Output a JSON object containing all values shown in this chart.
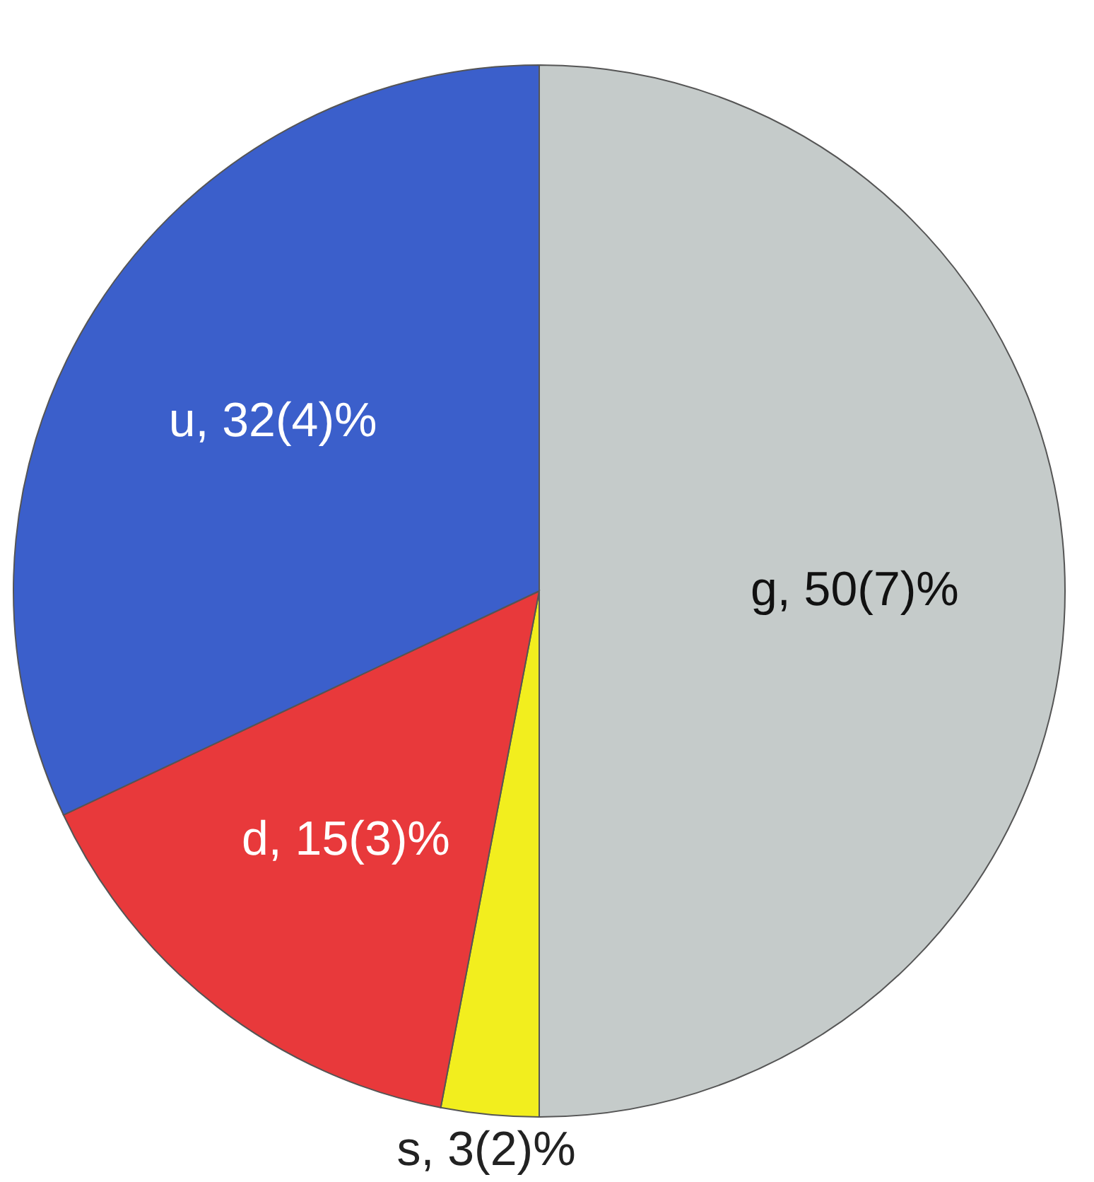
{
  "chart_data": {
    "type": "pie",
    "categories": [
      "g",
      "s",
      "d",
      "u"
    ],
    "values": [
      50,
      3,
      15,
      32
    ],
    "colors": [
      "#c5cbca",
      "#f2ee1e",
      "#e8393b",
      "#3b5fcb"
    ],
    "value_labels": [
      "50(7)%",
      "3(2)%",
      "15(3)%",
      "32(4)%"
    ],
    "legend": false
  }
}
